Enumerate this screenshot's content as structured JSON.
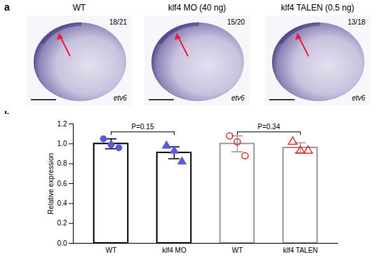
{
  "figure": {
    "panel_a": {
      "label": "a",
      "images": [
        {
          "title": "WT",
          "count": "18/21",
          "gene": "etv6"
        },
        {
          "title": "klf4 MO (40 ng)",
          "count": "15/20",
          "gene": "etv6"
        },
        {
          "title": "klf4 TALEN (0.5 ng)",
          "count": "13/18",
          "gene": "etv6"
        }
      ]
    },
    "panel_b_label": "b"
  },
  "chart_data": {
    "type": "bar",
    "categories": [
      "WT",
      "klf4 MO",
      "WT",
      "klf4 TALEN"
    ],
    "values": [
      1.0,
      0.91,
      1.0,
      0.96
    ],
    "errors": [
      0.05,
      0.06,
      0.08,
      0.05
    ],
    "colors": [
      "#000000",
      "#000000",
      "#999999",
      "#999999"
    ],
    "points": [
      {
        "values": [
          1.05,
          0.99,
          0.96
        ],
        "color": "#5b5bd9",
        "marker": "circle"
      },
      {
        "values": [
          0.98,
          0.93,
          0.82
        ],
        "color": "#5b5bd9",
        "marker": "triangle"
      },
      {
        "values": [
          1.08,
          1.02,
          0.88
        ],
        "color": "#e03030",
        "marker": "circle-open"
      },
      {
        "values": [
          1.02,
          0.93,
          0.93
        ],
        "color": "#e03030",
        "marker": "triangle-open"
      }
    ],
    "annotations": [
      {
        "text": "P=0.15",
        "from": 0,
        "to": 1,
        "y": 1.12
      },
      {
        "text": "P=0.34",
        "from": 2,
        "to": 3,
        "y": 1.12
      }
    ],
    "ylabel": "Relative expression",
    "ylim": [
      0,
      1.2
    ],
    "yticks": [
      {
        "value": 0,
        "label": "0.0"
      },
      {
        "value": 0.2,
        "label": "0.2"
      },
      {
        "value": 0.4,
        "label": "0.4"
      },
      {
        "value": 0.6,
        "label": "0.6"
      },
      {
        "value": 0.8,
        "label": "0.8"
      },
      {
        "value": 1.0,
        "label": "1.0"
      },
      {
        "value": 1.2,
        "label": "1.2"
      }
    ],
    "grid": false
  }
}
